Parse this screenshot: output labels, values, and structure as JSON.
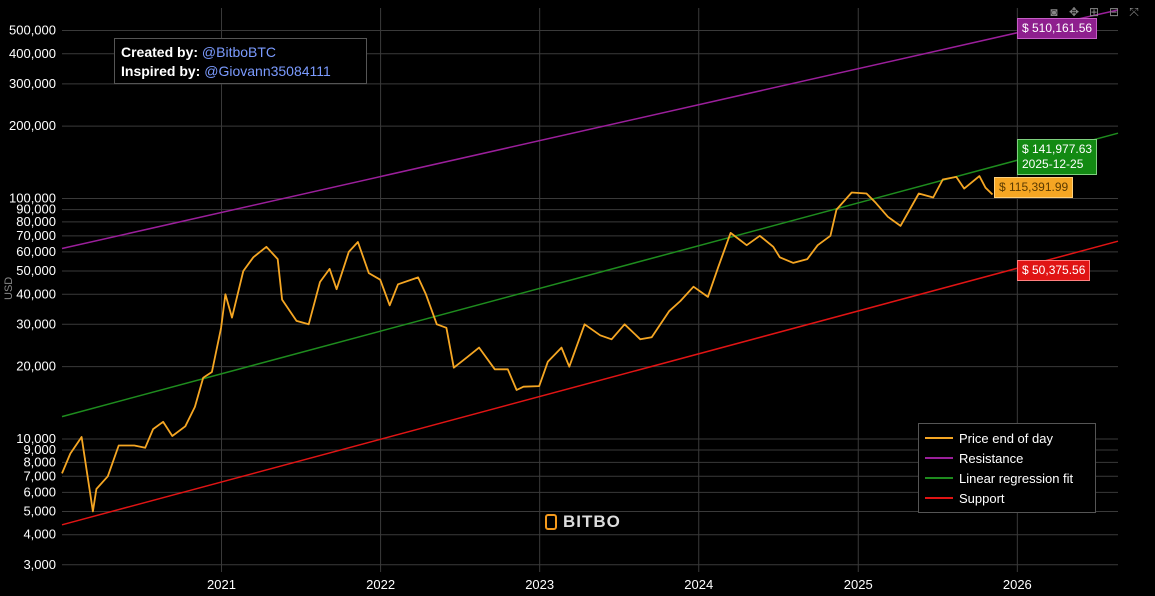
{
  "chart_data": {
    "type": "line",
    "title": "",
    "ylabel": "USD",
    "xlabel": "",
    "y_scale": "log",
    "ylim": [
      2800,
      620000
    ],
    "xlim": [
      "2020-01-01",
      "2026-08-20"
    ],
    "grid": true,
    "legend_position": "bottom-right",
    "y_ticks": [
      3000,
      4000,
      5000,
      6000,
      7000,
      8000,
      9000,
      10000,
      20000,
      30000,
      40000,
      50000,
      60000,
      70000,
      80000,
      90000,
      100000,
      200000,
      300000,
      400000,
      500000
    ],
    "y_tick_labels": [
      "3,000",
      "4,000",
      "5,000",
      "6,000",
      "7,000",
      "8,000",
      "9,000",
      "10,000",
      "20,000",
      "30,000",
      "40,000",
      "50,000",
      "60,000",
      "70,000",
      "80,000",
      "90,000",
      "100,000",
      "200,000",
      "300,000",
      "400,000",
      "500,000"
    ],
    "x_ticks": [
      "2021-01-01",
      "2022-01-01",
      "2023-01-01",
      "2024-01-01",
      "2025-01-01",
      "2026-01-01"
    ],
    "x_tick_labels": [
      "2021",
      "2022",
      "2023",
      "2024",
      "2025",
      "2026"
    ],
    "series": [
      {
        "name": "Price end of day",
        "color": "#f5a623",
        "x": [
          "2020-01-01",
          "2020-01-20",
          "2020-02-15",
          "2020-03-12",
          "2020-03-20",
          "2020-04-15",
          "2020-05-10",
          "2020-06-15",
          "2020-07-10",
          "2020-07-28",
          "2020-08-20",
          "2020-09-10",
          "2020-10-10",
          "2020-11-01",
          "2020-11-20",
          "2020-12-10",
          "2020-12-31",
          "2021-01-10",
          "2021-01-25",
          "2021-02-20",
          "2021-03-15",
          "2021-04-14",
          "2021-05-10",
          "2021-05-20",
          "2021-06-22",
          "2021-07-20",
          "2021-08-15",
          "2021-09-06",
          "2021-09-22",
          "2021-10-20",
          "2021-11-10",
          "2021-12-05",
          "2021-12-31",
          "2022-01-22",
          "2022-02-10",
          "2022-03-28",
          "2022-04-15",
          "2022-05-10",
          "2022-06-01",
          "2022-06-18",
          "2022-07-20",
          "2022-08-15",
          "2022-09-20",
          "2022-10-20",
          "2022-11-09",
          "2022-11-25",
          "2022-12-31",
          "2023-01-20",
          "2023-02-20",
          "2023-03-10",
          "2023-04-14",
          "2023-05-20",
          "2023-06-15",
          "2023-07-15",
          "2023-08-20",
          "2023-09-15",
          "2023-10-25",
          "2023-11-20",
          "2023-12-20",
          "2024-01-22",
          "2024-02-15",
          "2024-03-14",
          "2024-04-20",
          "2024-05-20",
          "2024-06-20",
          "2024-07-05",
          "2024-08-05",
          "2024-09-06",
          "2024-09-30",
          "2024-10-29",
          "2024-11-12",
          "2024-12-17",
          "2025-01-20",
          "2025-02-10",
          "2025-03-10",
          "2025-04-08",
          "2025-05-20",
          "2025-06-22",
          "2025-07-14",
          "2025-08-14",
          "2025-09-01",
          "2025-10-06",
          "2025-10-20",
          "2025-11-05"
        ],
        "values": [
          7200,
          8700,
          10200,
          5000,
          6200,
          7000,
          9400,
          9400,
          9200,
          11000,
          11800,
          10300,
          11300,
          13600,
          18000,
          19000,
          29000,
          40000,
          32000,
          50000,
          57000,
          63000,
          56000,
          38000,
          31000,
          30000,
          45000,
          51000,
          42000,
          60000,
          66000,
          49000,
          46000,
          36000,
          44000,
          47000,
          40000,
          30000,
          29000,
          19800,
          22000,
          24000,
          19500,
          19500,
          16000,
          16500,
          16600,
          21000,
          24000,
          20000,
          30000,
          27000,
          26000,
          30000,
          26000,
          26500,
          34000,
          37500,
          43000,
          39000,
          52000,
          72000,
          64000,
          70000,
          63000,
          57000,
          54000,
          56000,
          64000,
          70000,
          90000,
          106000,
          105000,
          96000,
          84000,
          77000,
          105000,
          101000,
          120000,
          123000,
          110000,
          124000,
          111000,
          104000
        ]
      },
      {
        "name": "Resistance",
        "color": "#9b1f9b",
        "x": [
          "2020-01-01",
          "2026-08-20"
        ],
        "values": [
          62000,
          608000
        ]
      },
      {
        "name": "Linear regression fit",
        "color": "#1e8c1e",
        "x": [
          "2020-01-01",
          "2026-08-20"
        ],
        "values": [
          12400,
          187000
        ]
      },
      {
        "name": "Support",
        "color": "#e01414",
        "x": [
          "2020-01-01",
          "2026-08-20"
        ],
        "values": [
          4400,
          66500
        ]
      }
    ],
    "annotations": [
      {
        "text": "$ 510,161.56",
        "color": "#8e1f8e"
      },
      {
        "text": "$ 141,977.63",
        "sub": "2025-12-25",
        "color": "#138a13"
      },
      {
        "text": "$ 115,391.99",
        "color": "#f5a623"
      },
      {
        "text": "$ 50,375.56",
        "color": "#e01414"
      }
    ]
  },
  "credit": {
    "created_label": "Created by:",
    "created_handle": "@BitboBTC",
    "inspired_label": "Inspired by:",
    "inspired_handle": "@Giovann35084111"
  },
  "logo_text": "BITBO",
  "toolbar": {
    "icons": [
      "camera-icon",
      "pan-icon",
      "zoom-in-icon",
      "zoom-out-icon",
      "autoscale-icon"
    ]
  }
}
